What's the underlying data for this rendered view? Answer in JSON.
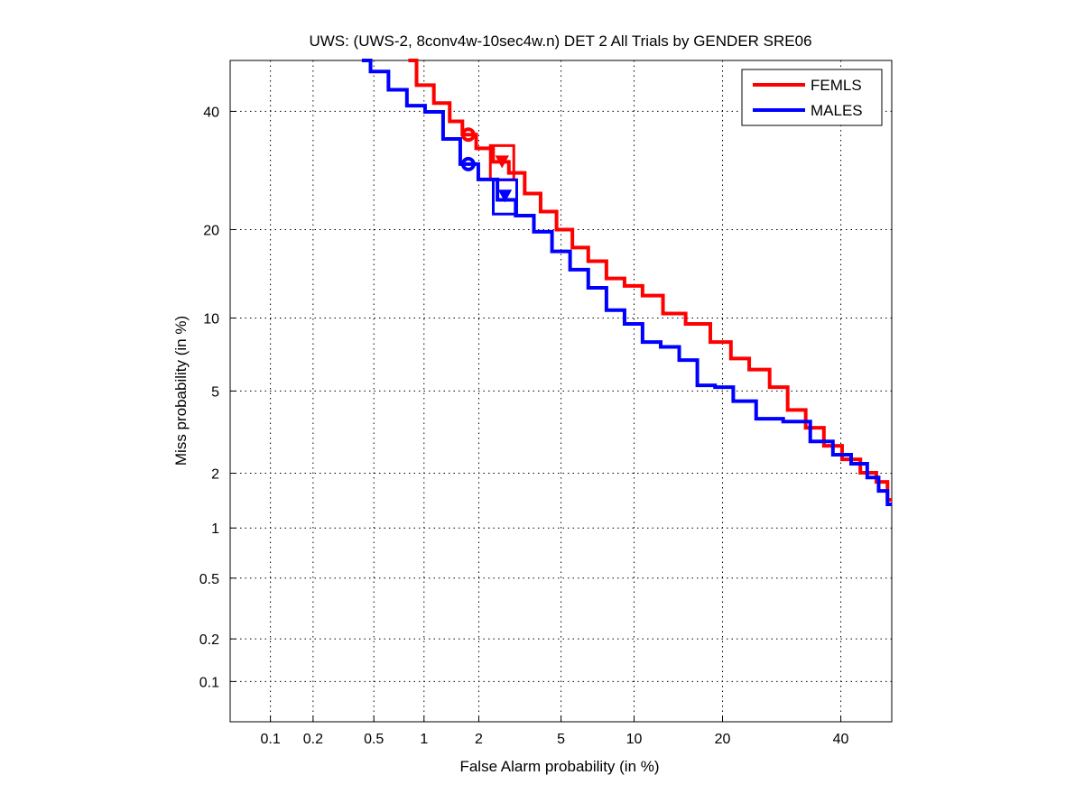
{
  "chart_data": {
    "type": "line",
    "title": "UWS: (UWS-2, 8conv4w-10sec4w.n) DET 2 All Trials by GENDER SRE06",
    "xlabel": "False Alarm probability (in %)",
    "ylabel": "Miss probability (in %)",
    "scale": "probit",
    "xlim": [
      0.05,
      50
    ],
    "ylim": [
      0.05,
      50
    ],
    "grid": true,
    "legend_position": "top-right",
    "xticks": [
      0.1,
      0.2,
      0.5,
      1,
      2,
      5,
      10,
      20,
      40
    ],
    "xtick_labels": [
      "0.1",
      "0.2",
      "0.5",
      "1",
      "2",
      "5",
      "10",
      "20",
      "40"
    ],
    "yticks": [
      0.1,
      0.2,
      0.5,
      1,
      2,
      5,
      10,
      20,
      40
    ],
    "ytick_labels": [
      "0.1",
      "0.2",
      "0.5",
      "1",
      "2",
      "5",
      "10",
      "20",
      "40"
    ],
    "series": [
      {
        "name": "FEMLS",
        "color": "#ff0000",
        "x": [
          0.81,
          1.01,
          1.28,
          1.52,
          1.76,
          2.13,
          2.63,
          3.07,
          3.75,
          4.34,
          5.24,
          6.0,
          7.16,
          8.47,
          9.96,
          11.6,
          14.0,
          16.6,
          20.2,
          22.2,
          25.7,
          28.7,
          31.8,
          35.1,
          38.5,
          42.0,
          45.6,
          48.3,
          50
        ],
        "y": [
          50,
          45.1,
          41.6,
          38.1,
          35.6,
          33.1,
          30.7,
          28.8,
          25.4,
          22.6,
          20.0,
          17.6,
          15.9,
          13.9,
          13.1,
          12.1,
          10.4,
          9.5,
          8.06,
          6.9,
          6.2,
          5.2,
          4.1,
          3.38,
          2.76,
          2.36,
          2.01,
          1.8,
          1.44
        ],
        "circle_marker": {
          "x": 1.76,
          "y": 35.6
        },
        "triangle_marker": {
          "x": 2.63,
          "y": 30.7
        }
      },
      {
        "name": "MALES",
        "color": "#0000ff",
        "x": [
          0.42,
          0.54,
          0.7,
          0.9,
          1.14,
          1.44,
          1.76,
          2.24,
          2.77,
          3.4,
          4.14,
          5.0,
          6.0,
          7.16,
          8.47,
          9.96,
          11.6,
          13.5,
          15.6,
          17.8,
          20.2,
          22.9,
          27.2,
          31.8,
          36.8,
          40.2,
          43.8,
          46.5,
          48.3,
          50
        ],
        "y": [
          50,
          47.8,
          44.2,
          41.1,
          39.9,
          34.8,
          30.3,
          27.7,
          24.4,
          22.0,
          19.7,
          17.1,
          14.9,
          12.9,
          10.7,
          9.5,
          8.06,
          7.7,
          6.8,
          5.3,
          5.2,
          4.5,
          3.73,
          3.62,
          2.9,
          2.49,
          2.24,
          1.9,
          1.61,
          1.36
        ],
        "circle_marker": {
          "x": 1.76,
          "y": 30.3
        },
        "triangle_marker": {
          "x": 2.72,
          "y": 25.0
        }
      }
    ]
  }
}
